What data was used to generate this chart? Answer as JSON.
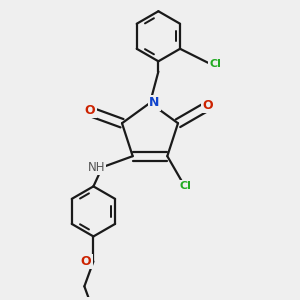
{
  "background_color": "#efefef",
  "bond_color": "#1a1a1a",
  "bond_width": 1.6,
  "figsize": [
    3.0,
    3.0
  ],
  "dpi": 100,
  "xlim": [
    0,
    10
  ],
  "ylim": [
    0,
    10
  ]
}
